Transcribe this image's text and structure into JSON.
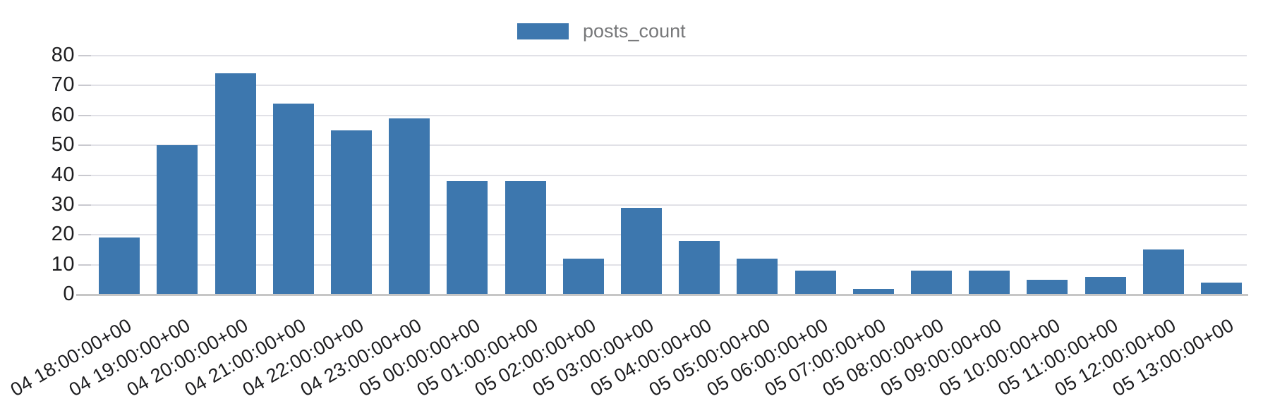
{
  "chart_data": {
    "type": "bar",
    "title": "",
    "xlabel": "",
    "ylabel": "",
    "legend": {
      "label": "posts_count",
      "position": "top-center"
    },
    "categories": [
      "04 18:00:00+00",
      "04 19:00:00+00",
      "04 20:00:00+00",
      "04 21:00:00+00",
      "04 22:00:00+00",
      "04 23:00:00+00",
      "05 00:00:00+00",
      "05 01:00:00+00",
      "05 02:00:00+00",
      "05 03:00:00+00",
      "05 04:00:00+00",
      "05 05:00:00+00",
      "05 06:00:00+00",
      "05 07:00:00+00",
      "05 08:00:00+00",
      "05 09:00:00+00",
      "05 10:00:00+00",
      "05 11:00:00+00",
      "05 12:00:00+00",
      "05 13:00:00+00"
    ],
    "series": [
      {
        "name": "posts_count",
        "values": [
          19,
          50,
          74,
          64,
          55,
          59,
          38,
          38,
          12,
          29,
          18,
          12,
          8,
          2,
          8,
          8,
          5,
          6,
          15,
          4
        ]
      }
    ],
    "ylim": [
      0,
      80
    ],
    "yticks": [
      0,
      10,
      20,
      30,
      40,
      50,
      60,
      70,
      80
    ],
    "grid": true,
    "x_tick_rotation_deg": -30
  },
  "colors": {
    "bar": "#3d77ae",
    "gridline": "#e1e1e7",
    "tick": "#c9c9cf",
    "axis_line": "#c6c6c6",
    "y_label_text": "#1d1d1f",
    "x_label_text": "#1c1c1e",
    "legend_text": "#77787a",
    "background": "#ffffff"
  }
}
